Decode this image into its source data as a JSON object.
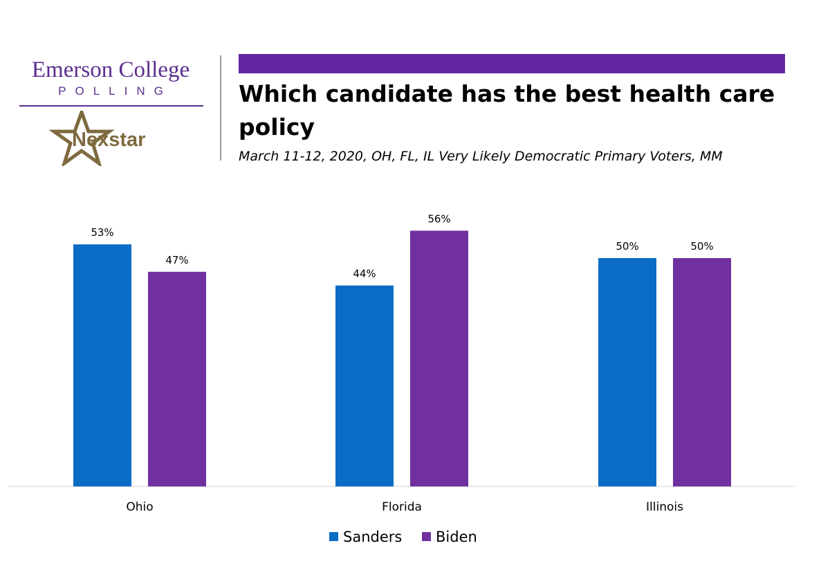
{
  "logo": {
    "line1": "Emerson College",
    "line2": "POLLING",
    "partner": "Nexstar",
    "partner_icon": "star-icon"
  },
  "colors": {
    "accent_bar": "#6426a0",
    "logo_purple": "#5b2d8e",
    "nexstar_gold": "#7d6a3e",
    "sanders": "#0a6cc4",
    "biden": "#7030a0"
  },
  "chart_data": {
    "type": "bar",
    "title": "Which candidate has the best health care policy",
    "subtitle": "March 11-12, 2020, OH, FL, IL Very Likely Democratic Primary Voters, MM",
    "categories": [
      "Ohio",
      "Florida",
      "Illinois"
    ],
    "series": [
      {
        "name": "Sanders",
        "values": [
          53,
          44,
          50
        ],
        "labels": [
          "53%",
          "44%",
          "50%"
        ]
      },
      {
        "name": "Biden",
        "values": [
          47,
          56,
          50
        ],
        "labels": [
          "47%",
          "56%",
          "50%"
        ]
      }
    ],
    "ylim": [
      0,
      60
    ],
    "grid": false,
    "legend": "bottom"
  }
}
